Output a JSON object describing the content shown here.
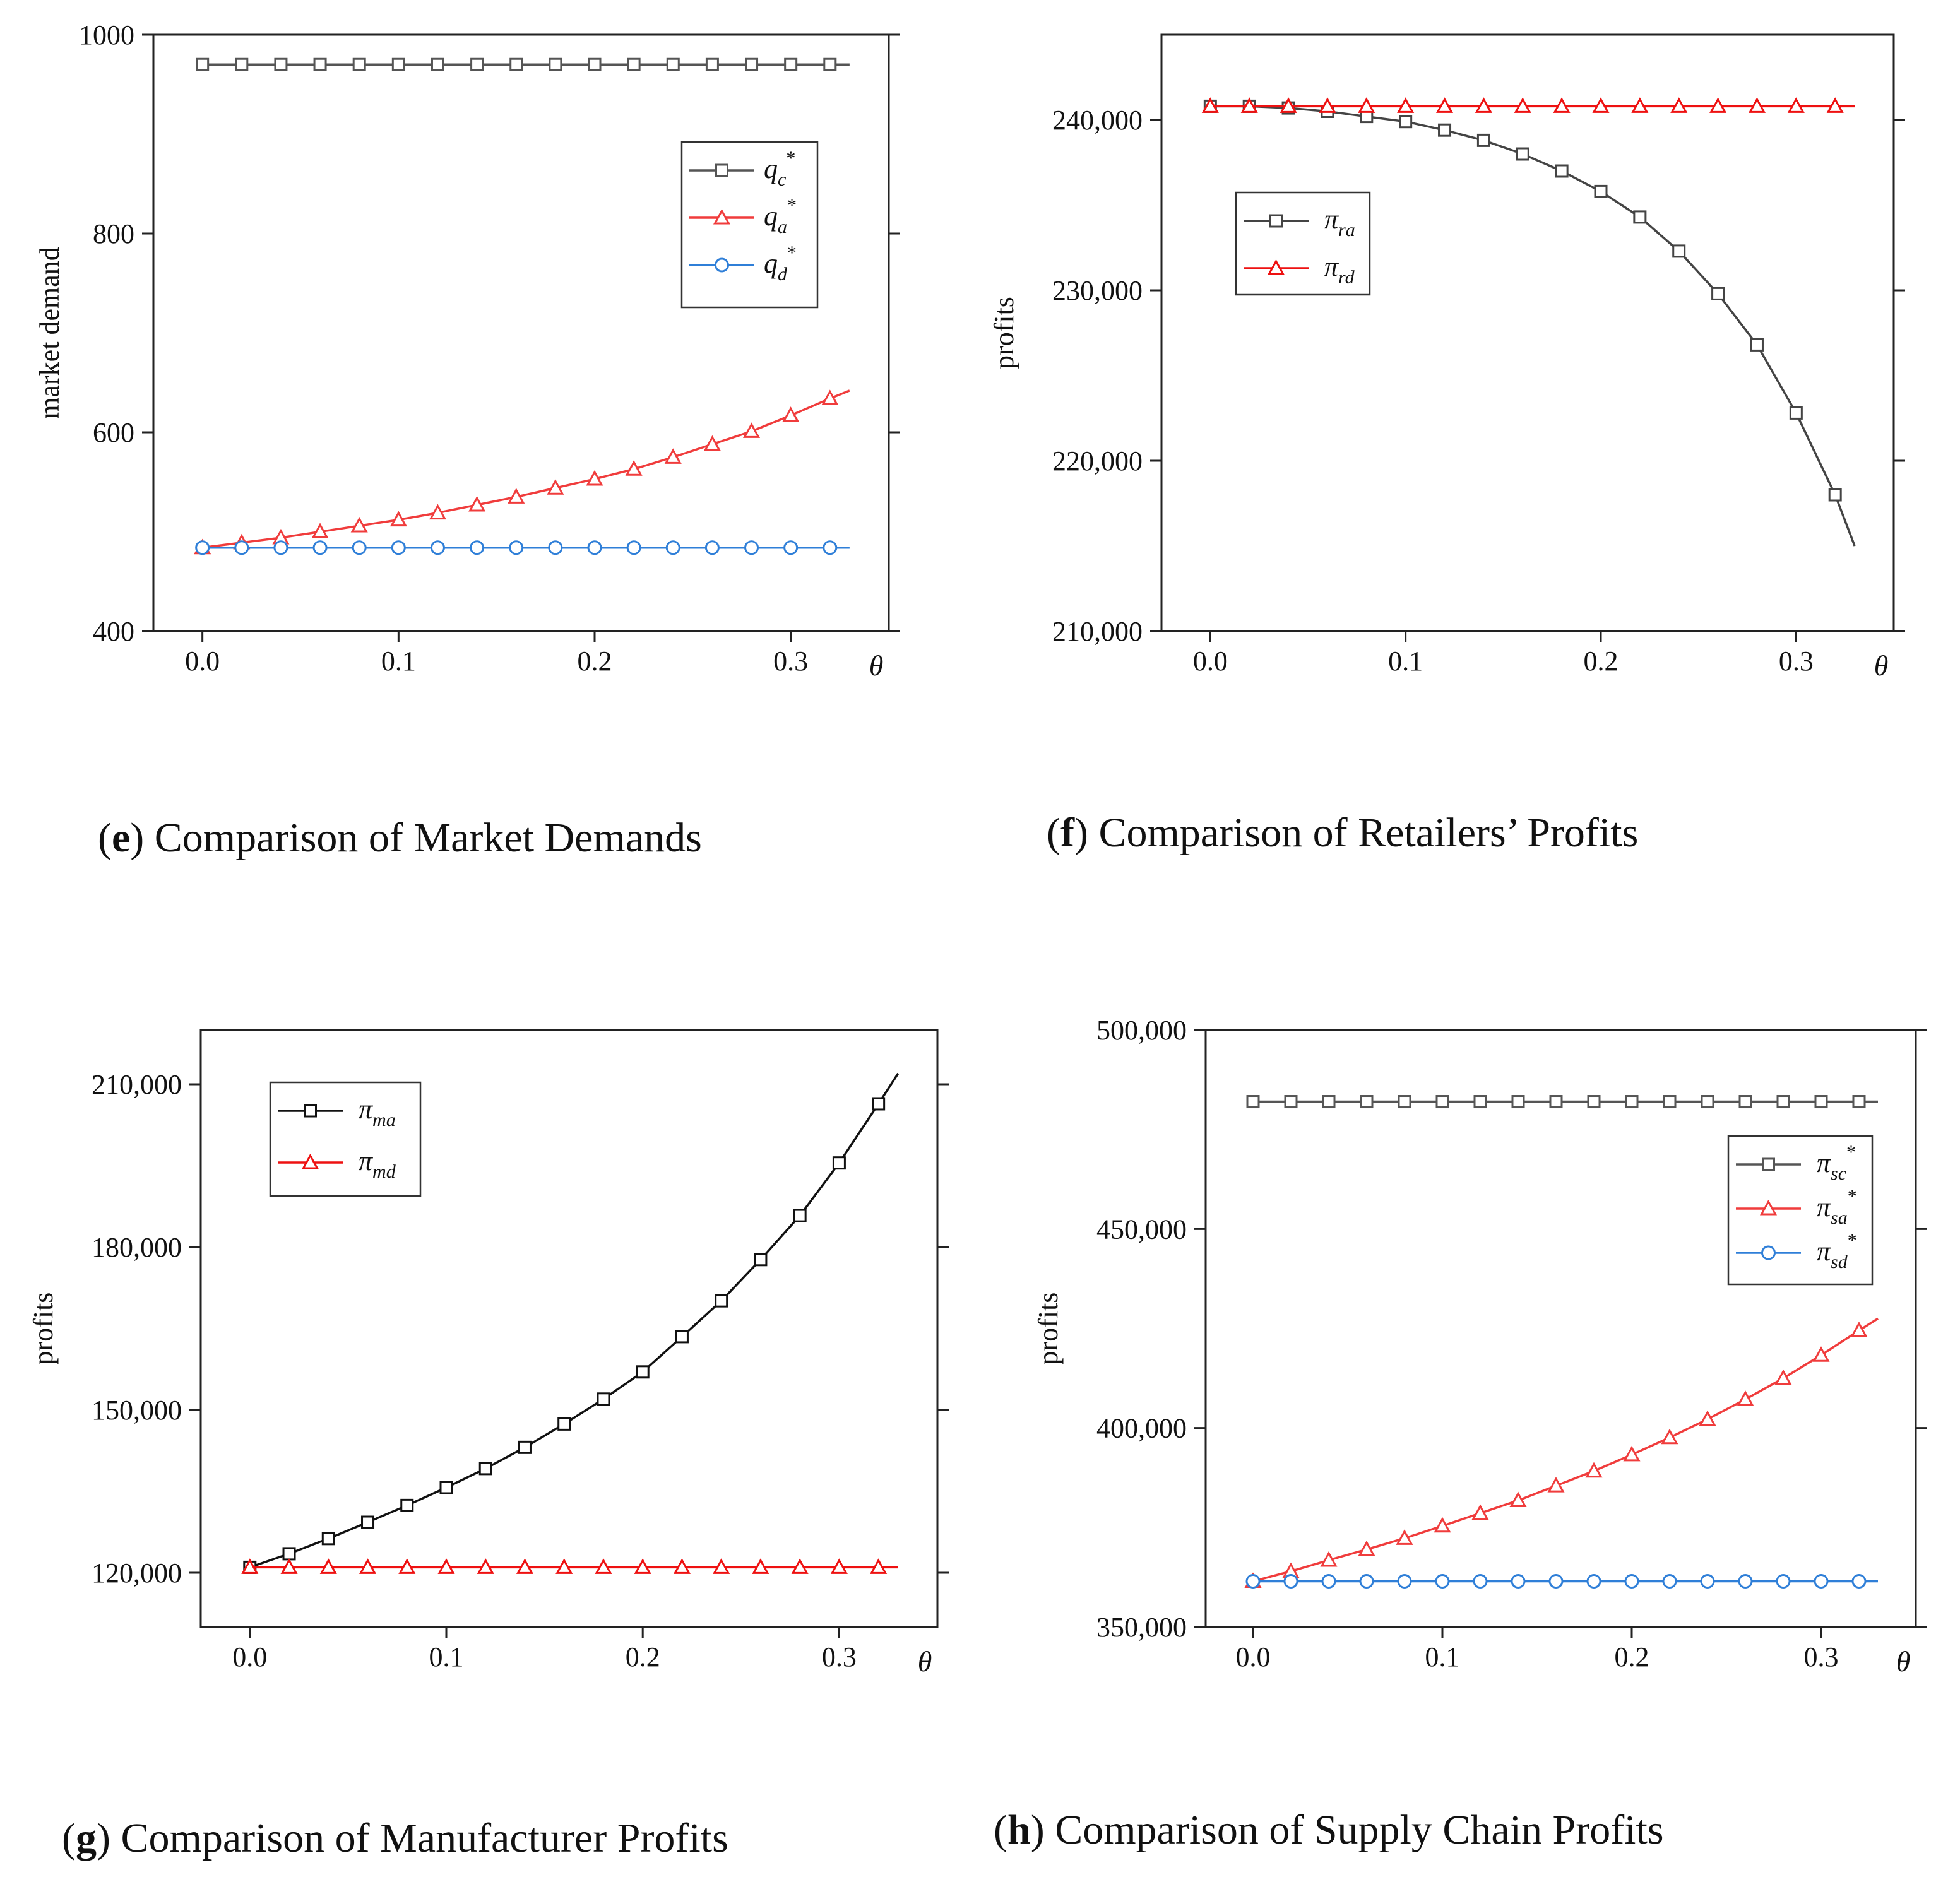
{
  "chart_data": [
    {
      "id": "e",
      "type": "line",
      "caption_letter": "e",
      "caption_text": "Comparison of Market Demands",
      "title": "",
      "xlabel": "θ",
      "ylabel": "market demand",
      "xlim": [
        -0.025,
        0.35
      ],
      "ylim": [
        400,
        1000
      ],
      "xticks": [
        0.0,
        0.1,
        0.2,
        0.3
      ],
      "xtick_labels": [
        "0.0",
        "0.1",
        "0.2",
        "0.3"
      ],
      "yticks": [
        400,
        600,
        800,
        1000
      ],
      "ytick_labels": [
        "400",
        "600",
        "800",
        "1000"
      ],
      "legend_position": "top-right",
      "x_markers": [
        0,
        0.02,
        0.04,
        0.06,
        0.08,
        0.1,
        0.12,
        0.14,
        0.16,
        0.18,
        0.2,
        0.22,
        0.24,
        0.26,
        0.28,
        0.3,
        0.32
      ],
      "x_end": 0.33,
      "series": [
        {
          "label_base": "q",
          "label_sub": "c",
          "label_sup": "*",
          "color": "#555555",
          "marker": "square",
          "values": [
            970,
            970,
            970,
            970,
            970,
            970,
            970,
            970,
            970,
            970,
            970,
            970,
            970,
            970,
            970,
            970,
            970
          ],
          "end_value": 970
        },
        {
          "label_base": "q",
          "label_sub": "a",
          "label_sup": "*",
          "color": "#f03c3c",
          "marker": "triangle",
          "values": [
            484,
            489,
            494,
            500,
            506,
            512,
            519,
            527,
            535,
            544,
            553,
            563,
            575,
            588,
            601,
            617,
            634
          ],
          "end_value": 642
        },
        {
          "label_base": "q",
          "label_sub": "d",
          "label_sup": "*",
          "color": "#2f7fd8",
          "marker": "circle",
          "values": [
            484,
            484,
            484,
            484,
            484,
            484,
            484,
            484,
            484,
            484,
            484,
            484,
            484,
            484,
            484,
            484,
            484
          ],
          "end_value": 484
        }
      ]
    },
    {
      "id": "f",
      "type": "line",
      "caption_letter": "f",
      "caption_text": "Comparison of Retailers’ Profits",
      "title": "",
      "xlabel": "θ",
      "ylabel": "profits",
      "xlim": [
        -0.025,
        0.35
      ],
      "ylim": [
        210000,
        245000
      ],
      "xticks": [
        0.0,
        0.1,
        0.2,
        0.3
      ],
      "xtick_labels": [
        "0.0",
        "0.1",
        "0.2",
        "0.3"
      ],
      "yticks": [
        210000,
        220000,
        230000,
        240000
      ],
      "ytick_labels": [
        "210,000",
        "220,000",
        "230,000",
        "240,000"
      ],
      "legend_position": "top-left",
      "x_markers": [
        0,
        0.02,
        0.04,
        0.06,
        0.08,
        0.1,
        0.12,
        0.14,
        0.16,
        0.18,
        0.2,
        0.22,
        0.24,
        0.26,
        0.28,
        0.3,
        0.32
      ],
      "x_end": 0.33,
      "series": [
        {
          "label_base": "π",
          "label_sub": "ra",
          "label_sup": "",
          "color": "#444444",
          "marker": "square",
          "values": [
            240800,
            240800,
            240700,
            240500,
            240200,
            239900,
            239400,
            238800,
            238000,
            237000,
            235800,
            234300,
            232300,
            229800,
            226800,
            222800,
            218000
          ],
          "end_value": 215000
        },
        {
          "label_base": "π",
          "label_sub": "rd",
          "label_sup": "",
          "color": "#ee1111",
          "marker": "triangle",
          "values": [
            240800,
            240800,
            240800,
            240800,
            240800,
            240800,
            240800,
            240800,
            240800,
            240800,
            240800,
            240800,
            240800,
            240800,
            240800,
            240800,
            240800
          ],
          "end_value": 240800
        }
      ]
    },
    {
      "id": "g",
      "type": "line",
      "caption_letter": "g",
      "caption_text": "Comparison of Manufacturer Profits",
      "title": "",
      "xlabel": "θ",
      "ylabel": "profits",
      "xlim": [
        -0.025,
        0.35
      ],
      "ylim": [
        110000,
        220000
      ],
      "xticks": [
        0.0,
        0.1,
        0.2,
        0.3
      ],
      "xtick_labels": [
        "0.0",
        "0.1",
        "0.2",
        "0.3"
      ],
      "yticks": [
        120000,
        150000,
        180000,
        210000
      ],
      "ytick_labels": [
        "120,000",
        "150,000",
        "180,000",
        "210,000"
      ],
      "legend_position": "top-left",
      "x_markers": [
        0,
        0.02,
        0.04,
        0.06,
        0.08,
        0.1,
        0.12,
        0.14,
        0.16,
        0.18,
        0.2,
        0.22,
        0.24,
        0.26,
        0.28,
        0.3,
        0.32
      ],
      "x_end": 0.33,
      "series": [
        {
          "label_base": "π",
          "label_sub": "ma",
          "label_sup": "",
          "color": "#111111",
          "marker": "square",
          "values": [
            121000,
            123500,
            126300,
            129300,
            132400,
            135700,
            139200,
            143100,
            147400,
            152000,
            157000,
            163500,
            170100,
            177700,
            185800,
            195500,
            206400
          ],
          "end_value": 212000
        },
        {
          "label_base": "π",
          "label_sub": "md",
          "label_sup": "",
          "color": "#ee1111",
          "marker": "triangle",
          "values": [
            121000,
            121000,
            121000,
            121000,
            121000,
            121000,
            121000,
            121000,
            121000,
            121000,
            121000,
            121000,
            121000,
            121000,
            121000,
            121000,
            121000
          ],
          "end_value": 121000
        }
      ]
    },
    {
      "id": "h",
      "type": "line",
      "caption_letter": "h",
      "caption_text": "Comparison of Supply Chain Profits",
      "title": "",
      "xlabel": "θ",
      "ylabel": "profits",
      "xlim": [
        -0.025,
        0.35
      ],
      "ylim": [
        350000,
        500000
      ],
      "xticks": [
        0.0,
        0.1,
        0.2,
        0.3
      ],
      "xtick_labels": [
        "0.0",
        "0.1",
        "0.2",
        "0.3"
      ],
      "yticks": [
        350000,
        400000,
        450000,
        500000
      ],
      "ytick_labels": [
        "350,000",
        "400,000",
        "450,000",
        "500,000"
      ],
      "legend_position": "right",
      "x_markers": [
        0,
        0.02,
        0.04,
        0.06,
        0.08,
        0.1,
        0.12,
        0.14,
        0.16,
        0.18,
        0.2,
        0.22,
        0.24,
        0.26,
        0.28,
        0.3,
        0.32
      ],
      "x_end": 0.33,
      "series": [
        {
          "label_base": "π",
          "label_sub": "sc",
          "label_sup": "*",
          "color": "#555555",
          "marker": "square",
          "values": [
            482000,
            482000,
            482000,
            482000,
            482000,
            482000,
            482000,
            482000,
            482000,
            482000,
            482000,
            482000,
            482000,
            482000,
            482000,
            482000,
            482000
          ],
          "end_value": 482000
        },
        {
          "label_base": "π",
          "label_sub": "sa",
          "label_sup": "*",
          "color": "#f03c3c",
          "marker": "triangle",
          "values": [
            361500,
            364000,
            366800,
            369500,
            372300,
            375400,
            378600,
            381800,
            385500,
            389200,
            393300,
            397600,
            402200,
            407200,
            412500,
            418300,
            424500
          ],
          "end_value": 427500
        },
        {
          "label_base": "π",
          "label_sub": "sd",
          "label_sup": "*",
          "color": "#2f7fd8",
          "marker": "circle",
          "values": [
            361500,
            361500,
            361500,
            361500,
            361500,
            361500,
            361500,
            361500,
            361500,
            361500,
            361500,
            361500,
            361500,
            361500,
            361500,
            361500,
            361500
          ],
          "end_value": 361500
        }
      ]
    }
  ]
}
